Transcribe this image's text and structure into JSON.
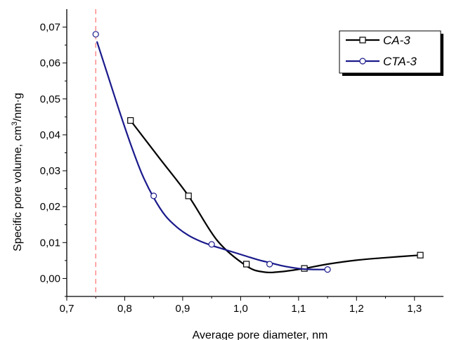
{
  "chart_data": {
    "type": "line",
    "xlabel": "Average pore diameter, nm",
    "ylabel_prefix": "Specific pore volume, cm",
    "ylabel_sup": "3",
    "ylabel_suffix": "/nm·g",
    "xlim": [
      0.7,
      1.35
    ],
    "ylim": [
      -0.005,
      0.075
    ],
    "x_ticks": [
      0.7,
      0.8,
      0.9,
      1.0,
      1.1,
      1.2,
      1.3
    ],
    "x_tick_labels": [
      "0,7",
      "0,8",
      "0,9",
      "1,0",
      "1,1",
      "1,2",
      "1,3"
    ],
    "y_ticks": [
      0.0,
      0.01,
      0.02,
      0.03,
      0.04,
      0.05,
      0.06,
      0.07
    ],
    "y_tick_labels": [
      "0,00",
      "0,01",
      "0,02",
      "0,03",
      "0,04",
      "0,05",
      "0,06",
      "0,07"
    ],
    "grid": false,
    "legend_position": "top-right",
    "reference_line": {
      "x": 0.75,
      "color": "#ff6f6f",
      "style": "dashed"
    },
    "series": [
      {
        "name": "CA-3",
        "color": "#000000",
        "marker": "square",
        "x": [
          0.81,
          0.91,
          1.01,
          1.11,
          1.31
        ],
        "y": [
          0.044,
          0.023,
          0.004,
          0.0028,
          0.0065
        ],
        "curve_x": [
          0.81,
          0.86,
          0.91,
          0.96,
          1.01,
          1.04,
          1.07,
          1.11,
          1.15,
          1.2,
          1.25,
          1.31
        ],
        "curve_y": [
          0.044,
          0.0335,
          0.023,
          0.0105,
          0.0035,
          0.0018,
          0.0019,
          0.0028,
          0.004,
          0.0051,
          0.0058,
          0.0065
        ]
      },
      {
        "name": "CTA-3",
        "color": "#1a1a8c",
        "marker": "circle",
        "x": [
          0.75,
          0.85,
          0.95,
          1.05,
          1.15
        ],
        "y": [
          0.068,
          0.023,
          0.0095,
          0.004,
          0.0025
        ],
        "curve_x": [
          0.752,
          0.77,
          0.79,
          0.81,
          0.83,
          0.85,
          0.87,
          0.89,
          0.91,
          0.93,
          0.95,
          0.97,
          0.99,
          1.01,
          1.03,
          1.05,
          1.07,
          1.09,
          1.11,
          1.13,
          1.15
        ],
        "curve_y": [
          0.066,
          0.057,
          0.047,
          0.0375,
          0.029,
          0.0225,
          0.0175,
          0.0143,
          0.012,
          0.0104,
          0.0092,
          0.0082,
          0.0072,
          0.0062,
          0.0052,
          0.0044,
          0.0036,
          0.003,
          0.0026,
          0.0025,
          0.0025
        ]
      }
    ]
  }
}
